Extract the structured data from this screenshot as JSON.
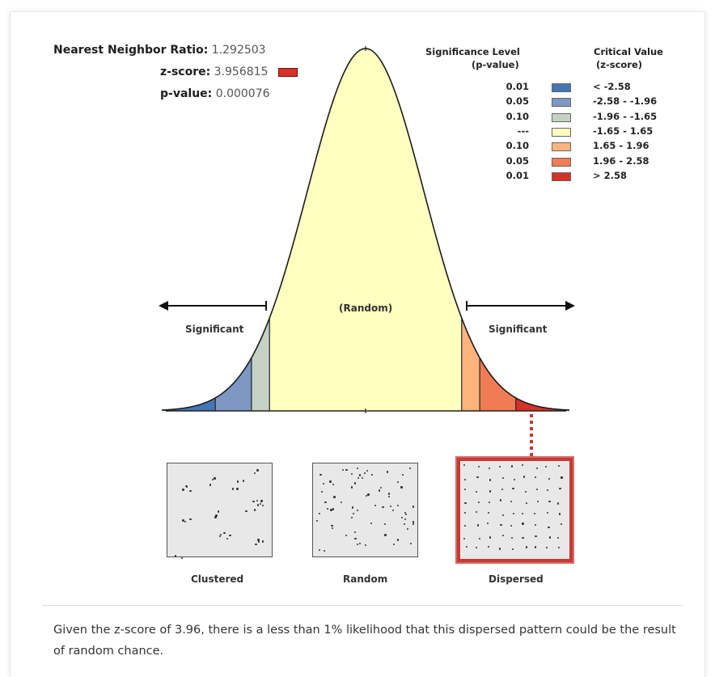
{
  "stats": {
    "nn_ratio_label": "Nearest Neighbor Ratio:",
    "nn_ratio_value": "1.292503",
    "zscore_label": "z-score:",
    "zscore_value": "3.956815",
    "zscore_color": "#d73027",
    "pvalue_label": "p-value:",
    "pvalue_value": "0.000076"
  },
  "legend": {
    "sig_header_1": "Significance Level",
    "sig_header_2": "(p-value)",
    "crit_header_1": "Critical Value",
    "crit_header_2": "(z-score)",
    "rows": [
      {
        "p": "0.01",
        "z": "< -2.58",
        "color": "#4575b4"
      },
      {
        "p": "0.05",
        "z": "-2.58 - -1.96",
        "color": "#7d98c3"
      },
      {
        "p": "0.10",
        "z": "-1.96 - -1.65",
        "color": "#c4d1c4"
      },
      {
        "p": "---",
        "z": "-1.65 - 1.65",
        "color": "#ffffbf"
      },
      {
        "p": "0.10",
        "z": "1.65 - 1.96",
        "color": "#fdb47c"
      },
      {
        "p": "0.05",
        "z": "1.96 - 2.58",
        "color": "#f07c55"
      },
      {
        "p": "0.01",
        "z": "> 2.58",
        "color": "#d73027"
      }
    ]
  },
  "curve": {
    "random_label": "(Random)",
    "significant_left": "Significant",
    "significant_right": "Significant",
    "highlight_color": "#c43a35"
  },
  "patterns": [
    {
      "label": "Clustered",
      "selected": false
    },
    {
      "label": "Random",
      "selected": false
    },
    {
      "label": "Dispersed",
      "selected": true
    }
  ],
  "conclusion": "Given the z-score of 3.96, there is a less than 1% likelihood that this dispersed pattern could be the result of random chance."
}
